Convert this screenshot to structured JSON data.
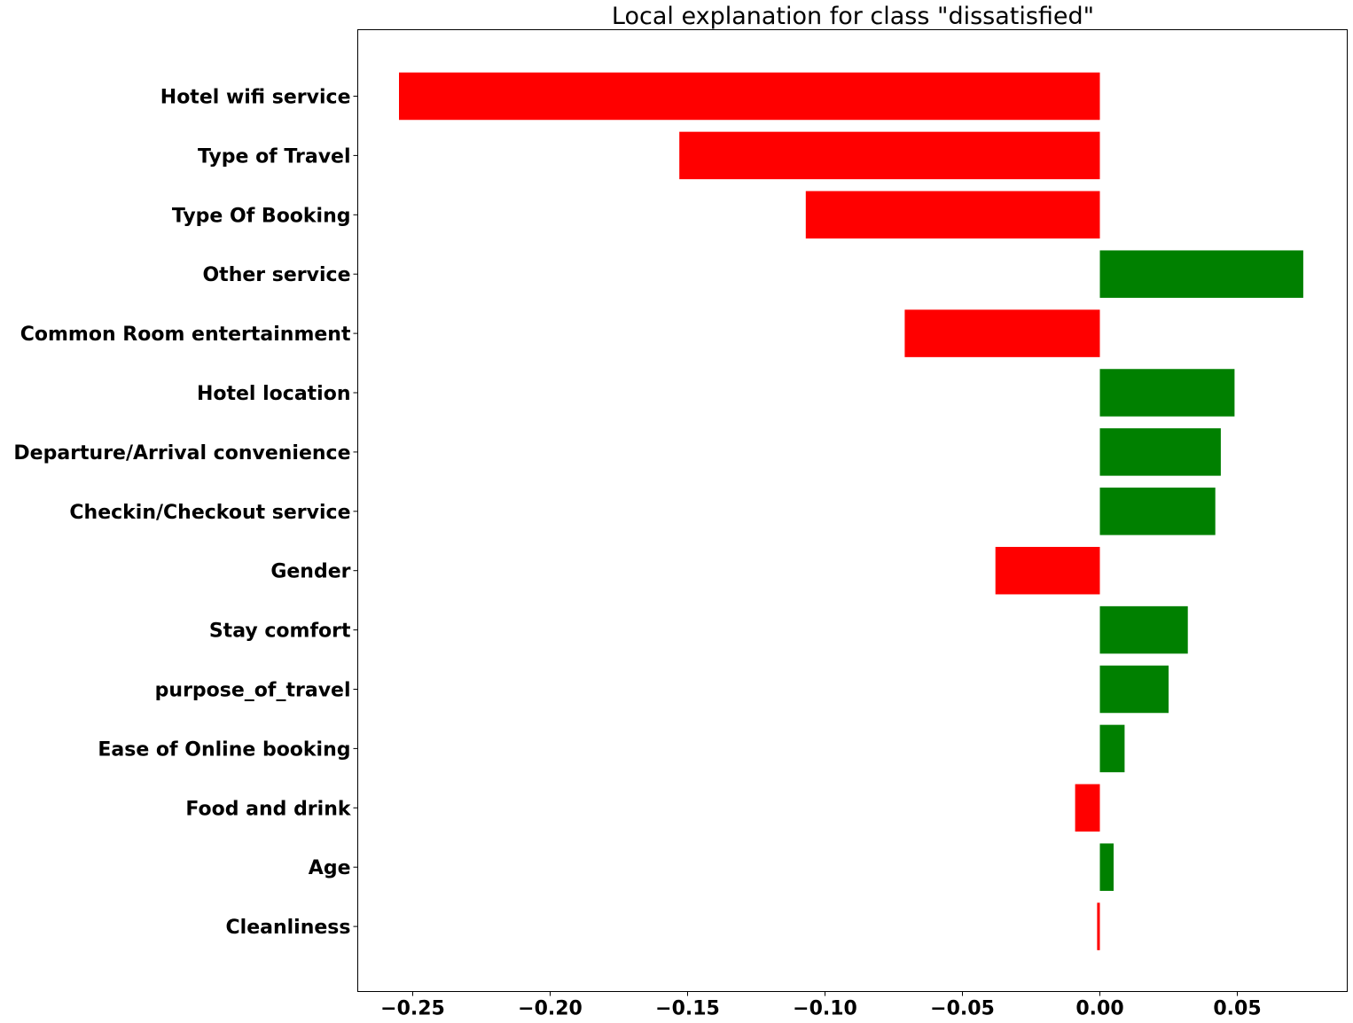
{
  "chart_data": {
    "type": "bar",
    "orientation": "horizontal",
    "title": "Local explanation for class \"dissatisfied\"",
    "xlabel": "",
    "ylabel": "",
    "categories": [
      "Hotel wifi service",
      "Type of Travel",
      "Type Of Booking",
      "Other service",
      "Common Room entertainment",
      "Hotel location",
      "Departure/Arrival  convenience",
      "Checkin/Checkout service",
      "Gender",
      "Stay comfort",
      "purpose_of_travel",
      "Ease of Online booking",
      "Food and drink",
      "Age",
      "Cleanliness"
    ],
    "values": [
      -0.255,
      -0.153,
      -0.107,
      0.074,
      -0.071,
      0.049,
      0.044,
      0.042,
      -0.038,
      0.032,
      0.025,
      0.009,
      -0.009,
      0.005,
      -0.001
    ],
    "xlim": [
      -0.27,
      0.09
    ],
    "xticks": [
      -0.25,
      -0.2,
      -0.15,
      -0.1,
      -0.05,
      0.0,
      0.05
    ],
    "xtick_labels": [
      "−0.25",
      "−0.20",
      "−0.15",
      "−0.10",
      "−0.05",
      "0.00",
      "0.05"
    ],
    "grid": false,
    "legend": "none",
    "colors": {
      "positive": "#008000",
      "negative": "#ff0000",
      "axis": "#000000"
    }
  }
}
